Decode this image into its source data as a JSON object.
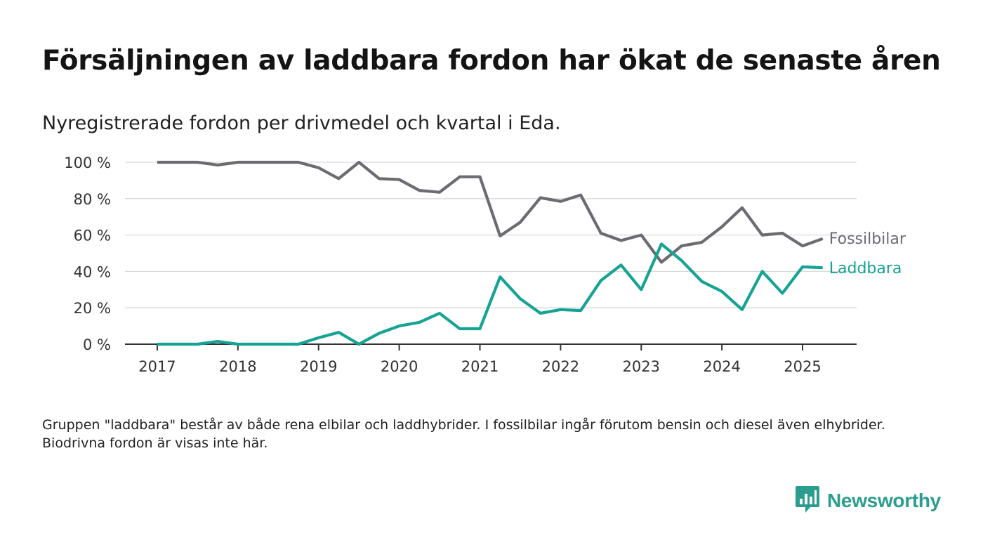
{
  "header": {
    "title": "Försäljningen av laddbara fordon har ökat de senaste åren",
    "subtitle": "Nyregistrerade fordon per drivmedel och kvartal i Eda."
  },
  "footer": {
    "note": "Gruppen \"laddbara\" består av både rena elbilar och laddhybrider. I fossilbilar ingår förutom bensin och diesel även elhybrider. Biodrivna fordon är visas inte här.",
    "brand": "Newsworthy",
    "brand_icon": "bar-chart-speech-bubble-icon"
  },
  "colors": {
    "fossil": "#6b6b72",
    "laddbara": "#16a394",
    "brand": "#2a9d8f",
    "grid": "#d9d9d9",
    "axis": "#333333"
  },
  "chart_data": {
    "type": "line",
    "x": [
      2017.0,
      2017.25,
      2017.5,
      2017.75,
      2018.0,
      2018.25,
      2018.5,
      2018.75,
      2019.0,
      2019.25,
      2019.5,
      2019.75,
      2020.0,
      2020.25,
      2020.5,
      2020.75,
      2021.0,
      2021.25,
      2021.5,
      2021.75,
      2022.0,
      2022.25,
      2022.5,
      2022.75,
      2023.0,
      2023.25,
      2023.5,
      2023.75,
      2024.0,
      2024.25,
      2024.5,
      2024.75,
      2025.0,
      2025.25
    ],
    "series": [
      {
        "name": "Fossilbilar",
        "values": [
          100,
          100,
          100,
          98.5,
          100,
          100,
          100,
          100,
          97,
          91,
          100,
          91,
          90.5,
          84.5,
          83.5,
          92,
          92,
          59.5,
          67,
          80.5,
          78.5,
          82,
          61,
          57,
          60,
          45,
          54,
          56,
          64.5,
          75,
          60,
          61,
          54,
          58
        ]
      },
      {
        "name": "Laddbara",
        "values": [
          0,
          0,
          0,
          1.5,
          0,
          0,
          0,
          0,
          3.5,
          6.5,
          0,
          6,
          10,
          12,
          17,
          8.5,
          8.5,
          37,
          25,
          17,
          19,
          18.5,
          35,
          43.5,
          30,
          55,
          46,
          34.5,
          29,
          19,
          40,
          28,
          42.5,
          42
        ]
      }
    ],
    "x_ticks": [
      2017,
      2018,
      2019,
      2020,
      2021,
      2022,
      2023,
      2024,
      2025
    ],
    "x_tick_labels": [
      "2017",
      "2018",
      "2019",
      "2020",
      "2021",
      "2022",
      "2023",
      "2024",
      "2025"
    ],
    "y_ticks": [
      0,
      20,
      40,
      60,
      80,
      100
    ],
    "y_tick_labels": [
      "0 %",
      "20 %",
      "40 %",
      "60 %",
      "80 %",
      "100 %"
    ],
    "xlim": [
      2016.6,
      2025.67
    ],
    "ylim": [
      0,
      100
    ],
    "xlabel": "",
    "ylabel": "",
    "grid": true,
    "legend": "inline labels at line ends"
  }
}
